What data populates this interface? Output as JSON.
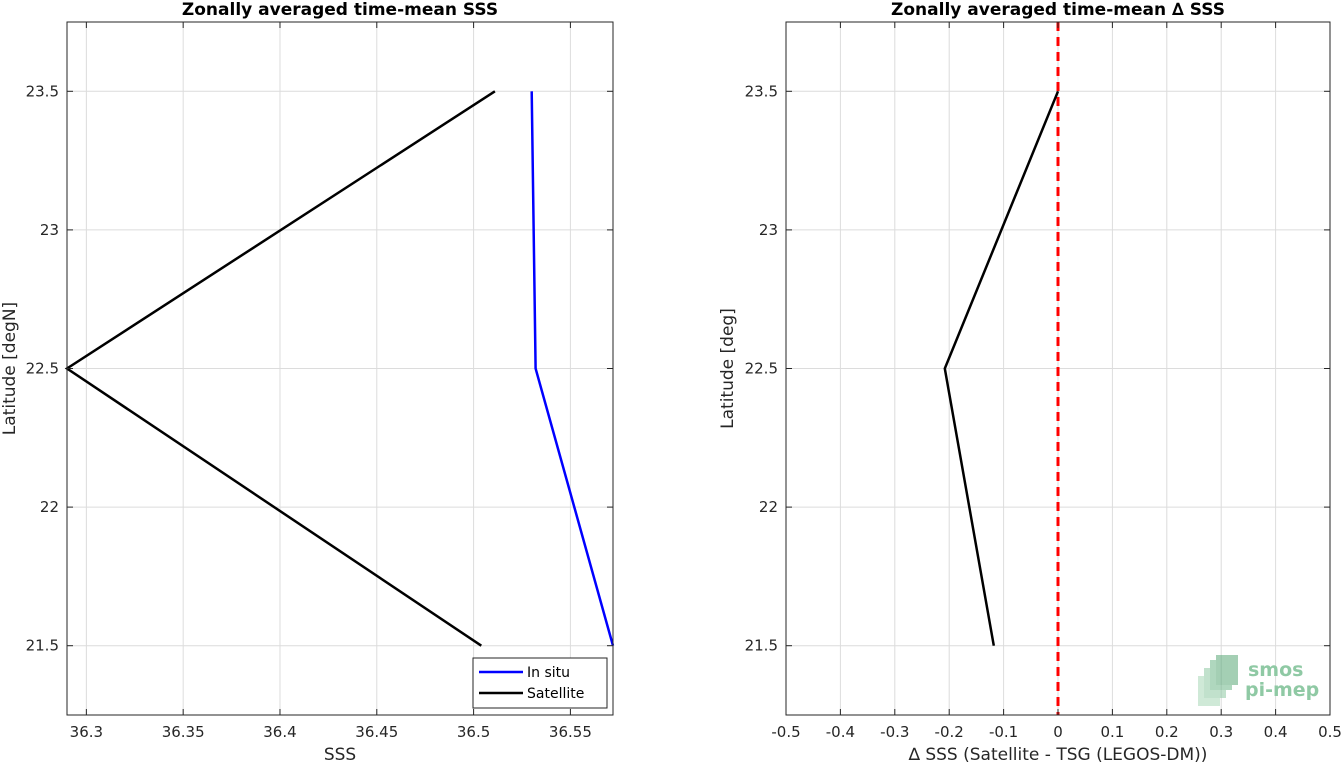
{
  "chart_data": [
    {
      "type": "line",
      "title": "Zonally averaged time-mean SSS",
      "xlabel": "SSS",
      "ylabel": "Latitude [degN]",
      "xlim": [
        36.29,
        36.572
      ],
      "ylim": [
        21.25,
        23.75
      ],
      "xticks": [
        36.3,
        36.35,
        36.4,
        36.45,
        36.5,
        36.55
      ],
      "xtick_labels": [
        "36.3",
        "36.35",
        "36.4",
        "36.45",
        "36.5",
        "36.55"
      ],
      "yticks": [
        21.5,
        22,
        22.5,
        23,
        23.5
      ],
      "ytick_labels": [
        "21.5",
        "22",
        "22.5",
        "23",
        "23.5"
      ],
      "grid": true,
      "legend_position": "bottom-right",
      "series": [
        {
          "name": "In situ",
          "color": "#0000ff",
          "x": [
            36.572,
            36.532,
            36.53
          ],
          "y": [
            21.5,
            22.5,
            23.5
          ]
        },
        {
          "name": "Satellite",
          "color": "#000000",
          "x": [
            36.504,
            36.29,
            36.511
          ],
          "y": [
            21.5,
            22.5,
            23.5
          ]
        }
      ]
    },
    {
      "type": "line",
      "title": "Zonally averaged time-mean ∆ SSS",
      "xlabel": "∆ SSS (Satellite - TSG (LEGOS-DM))",
      "ylabel": "Latitude [deg]",
      "xlim": [
        -0.5,
        0.5
      ],
      "ylim": [
        21.25,
        23.75
      ],
      "xticks": [
        -0.5,
        -0.4,
        -0.3,
        -0.2,
        -0.1,
        0,
        0.1,
        0.2,
        0.3,
        0.4,
        0.5
      ],
      "xtick_labels": [
        "-0.5",
        "-0.4",
        "-0.3",
        "-0.2",
        "-0.1",
        "0",
        "0.1",
        "0.2",
        "0.3",
        "0.4",
        "0.5"
      ],
      "yticks": [
        21.5,
        22,
        22.5,
        23,
        23.5
      ],
      "ytick_labels": [
        "21.5",
        "22",
        "22.5",
        "23",
        "23.5"
      ],
      "grid": true,
      "reference_line": {
        "x": 0,
        "color": "#ff0000",
        "style": "dashed"
      },
      "series": [
        {
          "color": "#000000",
          "x": [
            -0.118,
            -0.208,
            0.0
          ],
          "y": [
            21.5,
            22.5,
            23.5
          ]
        }
      ]
    }
  ],
  "logo": {
    "line1": "smos",
    "line2": "pi-mep",
    "color": "#8fc9a4"
  }
}
